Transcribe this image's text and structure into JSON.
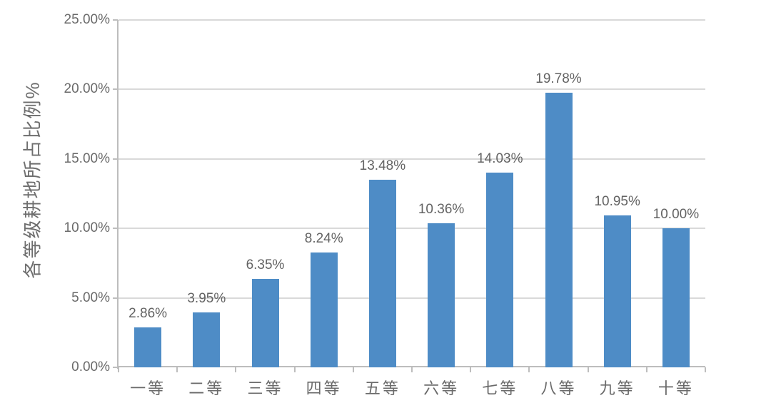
{
  "chart_data": {
    "type": "bar",
    "title": "",
    "xlabel": "",
    "ylabel": "各等级耕地所占比例%",
    "categories": [
      "一等",
      "二等",
      "三等",
      "四等",
      "五等",
      "六等",
      "七等",
      "八等",
      "九等",
      "十等"
    ],
    "values": [
      2.86,
      3.95,
      6.35,
      8.24,
      13.48,
      10.36,
      14.03,
      19.78,
      10.95,
      10.0
    ],
    "data_labels": [
      "2.86%",
      "3.95%",
      "6.35%",
      "8.24%",
      "13.48%",
      "10.36%",
      "14.03%",
      "19.78%",
      "10.95%",
      "10.00%"
    ],
    "y_ticks": [
      {
        "value": 0,
        "label": "0.00%"
      },
      {
        "value": 5,
        "label": "5.00%"
      },
      {
        "value": 10,
        "label": "10.00%"
      },
      {
        "value": 15,
        "label": "15.00%"
      },
      {
        "value": 20,
        "label": "20.00%"
      },
      {
        "value": 25,
        "label": "25.00%"
      }
    ],
    "ylim": [
      0,
      25
    ],
    "grid": "horizontal",
    "legend": "none",
    "colors": {
      "bar": "#4e8cc6",
      "text": "#6a6a6a",
      "gridline": "#d9d9d9",
      "axis": "#bdbdbd",
      "background": "#ffffff"
    }
  }
}
